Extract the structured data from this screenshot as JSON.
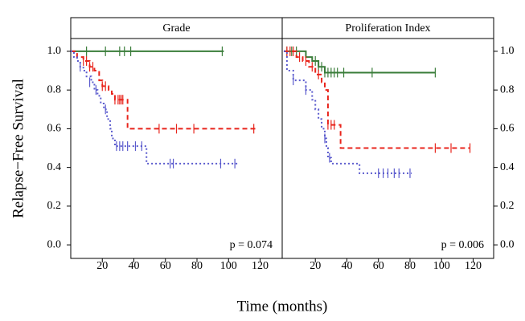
{
  "chart_data": [
    {
      "type": "line",
      "step": true,
      "title": "Grade",
      "annotation": "p = 0.074",
      "ylabel": "Relapse−Free Survival",
      "xlabel": "Time (months)",
      "xlim": [
        0,
        134
      ],
      "xticks": [
        20,
        40,
        60,
        80,
        100,
        120
      ],
      "ylim": [
        -0.07,
        1.066
      ],
      "yticks": [
        {
          "value": 0,
          "label": "0.0"
        },
        0.2,
        0.4,
        0.6,
        0.8,
        {
          "value": 1,
          "label": "1.0"
        }
      ],
      "series": [
        {
          "color": "#3a7d3a",
          "dash": "none",
          "x": [
            0,
            97
          ],
          "values": [
            1.0,
            1.0
          ],
          "censor_x": [
            10,
            22,
            31,
            34,
            38,
            96
          ],
          "censor_values": [
            1.0,
            1.0,
            1.0,
            1.0,
            1.0,
            1.0
          ]
        },
        {
          "color": "#e8251c",
          "dash": "6,4",
          "x": [
            0,
            4,
            8,
            12,
            15,
            18,
            20,
            24,
            26,
            28,
            36,
            117
          ],
          "values": [
            1.0,
            0.97,
            0.95,
            0.92,
            0.9,
            0.85,
            0.82,
            0.8,
            0.78,
            0.75,
            0.6,
            0.6
          ],
          "censor_x": [
            8,
            10,
            12,
            14,
            20,
            22,
            28,
            30,
            31,
            32,
            33,
            56,
            67,
            78,
            116
          ],
          "censor_values": [
            0.95,
            0.95,
            0.92,
            0.92,
            0.82,
            0.82,
            0.75,
            0.75,
            0.75,
            0.75,
            0.75,
            0.6,
            0.6,
            0.6,
            0.6
          ]
        },
        {
          "color": "#5a5acd",
          "dash": "2,3",
          "x": [
            0,
            2,
            4,
            6,
            8,
            10,
            13,
            15,
            17,
            19,
            21,
            23,
            25,
            26,
            28,
            48,
            106
          ],
          "values": [
            1.0,
            0.97,
            0.95,
            0.92,
            0.9,
            0.87,
            0.84,
            0.8,
            0.77,
            0.73,
            0.7,
            0.65,
            0.6,
            0.55,
            0.51,
            0.42,
            0.42
          ],
          "censor_x": [
            6,
            12,
            16,
            22,
            29,
            31,
            33,
            36,
            41,
            45,
            63,
            65,
            95,
            104
          ],
          "censor_values": [
            0.92,
            0.84,
            0.8,
            0.7,
            0.51,
            0.51,
            0.51,
            0.51,
            0.51,
            0.51,
            0.42,
            0.42,
            0.42,
            0.42
          ]
        }
      ]
    },
    {
      "type": "line",
      "step": true,
      "title": "Proliferation Index",
      "annotation": "p = 0.006",
      "xlim": [
        -1,
        133
      ],
      "xticks": [
        20,
        40,
        60,
        80,
        100,
        120
      ],
      "ylim": [
        -0.07,
        1.066
      ],
      "yticks": [
        {
          "value": 0,
          "label": "0.0"
        },
        0.2,
        0.4,
        0.6,
        0.8,
        {
          "value": 1,
          "label": "1.0"
        }
      ],
      "series": [
        {
          "color": "#3a7d3a",
          "dash": "none",
          "x": [
            0,
            14,
            18,
            22,
            26,
            96
          ],
          "values": [
            1.0,
            0.97,
            0.95,
            0.92,
            0.89,
            0.89
          ],
          "censor_x": [
            2,
            5,
            8,
            20,
            22,
            24,
            26,
            28,
            30,
            32,
            34,
            38,
            56,
            96
          ],
          "censor_values": [
            1.0,
            1.0,
            1.0,
            0.95,
            0.92,
            0.92,
            0.89,
            0.89,
            0.89,
            0.89,
            0.89,
            0.89,
            0.89,
            0.89
          ]
        },
        {
          "color": "#e8251c",
          "dash": "6,4",
          "x": [
            0,
            8,
            12,
            16,
            20,
            24,
            26,
            28,
            36,
            118
          ],
          "values": [
            1.0,
            0.97,
            0.95,
            0.92,
            0.88,
            0.84,
            0.8,
            0.62,
            0.5,
            0.5
          ],
          "censor_x": [
            2,
            4,
            6,
            10,
            14,
            18,
            22,
            28,
            30,
            32,
            96,
            106,
            118
          ],
          "censor_values": [
            1.0,
            1.0,
            1.0,
            0.97,
            0.95,
            0.92,
            0.88,
            0.62,
            0.62,
            0.62,
            0.5,
            0.5,
            0.5
          ]
        },
        {
          "color": "#5a5acd",
          "dash": "2,3",
          "x": [
            0,
            2,
            6,
            14,
            18,
            20,
            22,
            24,
            26,
            27,
            28,
            30,
            48,
            81
          ],
          "values": [
            1.0,
            0.9,
            0.85,
            0.8,
            0.75,
            0.7,
            0.65,
            0.6,
            0.55,
            0.5,
            0.45,
            0.42,
            0.37,
            0.37
          ],
          "censor_x": [
            6,
            14,
            26,
            29,
            60,
            63,
            66,
            70,
            73,
            80
          ],
          "censor_values": [
            0.85,
            0.8,
            0.55,
            0.45,
            0.37,
            0.37,
            0.37,
            0.37,
            0.37,
            0.37
          ]
        }
      ]
    }
  ]
}
